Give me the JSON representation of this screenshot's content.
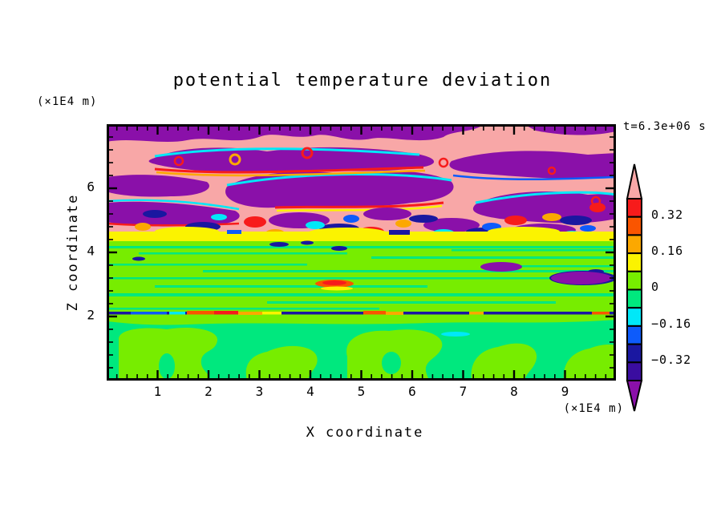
{
  "title": "potential temperature deviation",
  "time_label": "t=6.3e+06 s",
  "y_axis": {
    "label": "Z coordinate",
    "unit": "(×1E4 m)",
    "tick_labels": [
      "6",
      "4",
      "2"
    ]
  },
  "x_axis": {
    "label": "X coordinate",
    "unit": "(×1E4 m)",
    "tick_labels": [
      "1",
      "2",
      "3",
      "4",
      "5",
      "6",
      "7",
      "8",
      "9"
    ]
  },
  "colorbar": {
    "tick_labels": [
      "0.32",
      "0.16",
      "0",
      "−0.16",
      "−0.32"
    ],
    "arrow_top_color": "#f8a7a7",
    "arrow_bottom_color": "#8a10a9",
    "box_colors_top_to_bottom": [
      "#f71b1b",
      "#fa5500",
      "#fca800",
      "#fbf300",
      "#77ed00",
      "#00e87e",
      "#00e8f8",
      "#0d5bfb",
      "#1a17a0",
      "#3a0da0"
    ]
  },
  "chart_data": {
    "type": "heatmap",
    "title": "potential temperature deviation",
    "xlabel": "X coordinate",
    "ylabel": "Z coordinate",
    "x_unit": "×1E4 m",
    "y_unit": "×1E4 m",
    "xlim": [
      0,
      10
    ],
    "ylim": [
      0,
      8
    ],
    "x_major_ticks": [
      1,
      2,
      3,
      4,
      5,
      6,
      7,
      8,
      9
    ],
    "y_major_ticks": [
      2,
      4,
      6
    ],
    "time": "t=6.3e+06 s",
    "contour_levels": [
      -0.4,
      -0.32,
      -0.24,
      -0.16,
      -0.08,
      0,
      0.08,
      0.16,
      0.24,
      0.32,
      0.4
    ],
    "labeled_levels": [
      0.32,
      0.16,
      0,
      -0.16,
      -0.32
    ],
    "palette": {
      "above_max_pink": "#f8a7a7",
      "red": "#f71b1b",
      "orange_red": "#fa5500",
      "orange": "#fca800",
      "yellow": "#fbf300",
      "green_yellow": "#77ed00",
      "green": "#00e87e",
      "cyan": "#00e8f8",
      "blue": "#0d5bfb",
      "dark_blue": "#1a17a0",
      "indigo": "#3a0da0",
      "below_min_purple": "#8a10a9"
    },
    "regions": [
      {
        "z_range": [
          5.3,
          8.0
        ],
        "value_range": "alternating > +0.40 and < −0.40",
        "description": "breaking-wave layer: interleaved horizontal tongues of pink (above +0.40) and purple (below −0.40) with thin cyan/red/orange/yellow filaments at the interfaces"
      },
      {
        "z_range": [
          4.3,
          5.3
        ],
        "value_range": "−0.40 to +0.40",
        "description": "turbulent mixing band with small patches spanning all contour levels (red, orange, yellow, cyan, blue, dark blue, purple, pink)"
      },
      {
        "z_range": [
          4.0,
          4.3
        ],
        "value_range": "+0.08 to +0.16",
        "description": "nearly continuous yellow band across the full width"
      },
      {
        "z_range": [
          2.1,
          4.0
        ],
        "value_range": "0 to +0.08 with streaks of −0.08 to 0",
        "description": "green-yellow layer with thin horizontal green streaks; isolated dark-blue/purple blobs near x=7–8 and a small red-orange arc near x=4.4"
      },
      {
        "z_range": [
          2.0,
          2.1
        ],
        "value_range": "mostly < −0.24",
        "description": "sharp dark-blue inversion line across the full width with isolated red/orange/yellow spots near x=2–3, 5 and 9.6"
      },
      {
        "z_range": [
          0.0,
          2.0
        ],
        "value_range": "−0.08 to +0.08",
        "description": "convective cells: green background (−0.08 to 0) with mushroom-shaped green-yellow plumes (0 to +0.08) rising from the bottom boundary"
      }
    ]
  }
}
